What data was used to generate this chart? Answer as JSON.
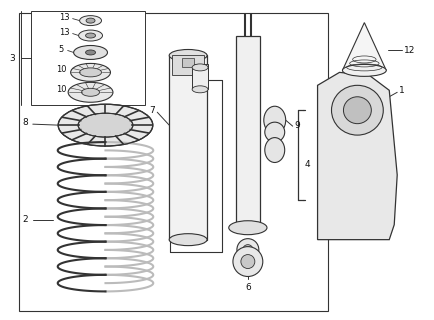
{
  "bg_color": "#ffffff",
  "line_color": "#333333",
  "label_color": "#111111",
  "fig_width": 4.35,
  "fig_height": 3.2,
  "dpi": 100
}
